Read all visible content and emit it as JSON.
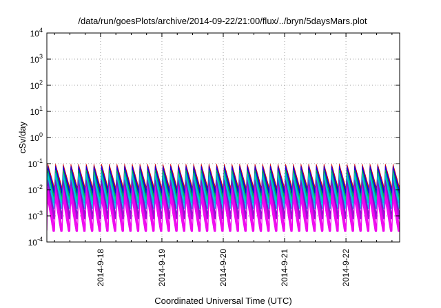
{
  "chart_data": {
    "type": "area",
    "title": "/data/run/goesPlots/archive/2014-09-22/21:00/flux/../bryn/5daysMars.plot",
    "xlabel": "Coordinated Universal Time (UTC)",
    "ylabel": "cSv/day",
    "yscale": "log",
    "ylim": [
      0.0001,
      10000
    ],
    "y_ticks": [
      {
        "base": "10",
        "exp": "-4"
      },
      {
        "base": "10",
        "exp": "-3"
      },
      {
        "base": "10",
        "exp": "-2"
      },
      {
        "base": "10",
        "exp": "-1"
      },
      {
        "base": "10",
        "exp": "0"
      },
      {
        "base": "10",
        "exp": "1"
      },
      {
        "base": "10",
        "exp": "2"
      },
      {
        "base": "10",
        "exp": "3"
      },
      {
        "base": "10",
        "exp": "4"
      }
    ],
    "x_range": [
      "2014-09-17 03:00",
      "2014-09-22 21:00"
    ],
    "x_ticks": [
      "2014-9-18",
      "2014-9-19",
      "2014-9-20",
      "2014-9-21",
      "2014-9-22"
    ],
    "grid": true,
    "oscillation_period_hours": 3,
    "series": [
      {
        "color": "#dd0000",
        "peak": 0.1,
        "trough": 0.012
      },
      {
        "color": "#0000ee",
        "peak": 0.085,
        "trough": 0.009
      },
      {
        "color": "#00cc44",
        "peak": 0.06,
        "trough": 0.005
      },
      {
        "color": "#00bbee",
        "peak": 0.045,
        "trough": 0.003
      },
      {
        "color": "#8800cc",
        "peak": 0.025,
        "trough": 0.0012
      },
      {
        "color": "#ee00ee",
        "peak": 0.015,
        "trough": 0.0004
      }
    ]
  }
}
